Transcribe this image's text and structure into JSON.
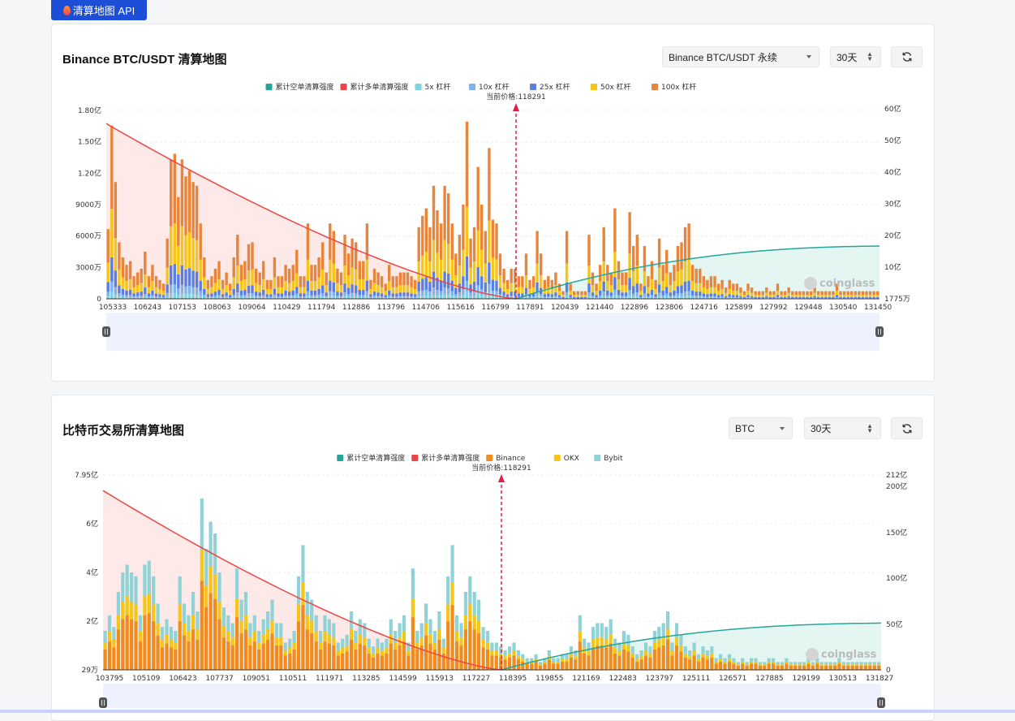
{
  "api_button": {
    "label": "清算地图 API"
  },
  "card1": {
    "title": "Binance BTC/USDT 清算地图",
    "pair_select": "Binance BTC/USDT 永续",
    "period_select": "30天",
    "chart": {
      "legend": [
        "累计空单清算强度",
        "累计多单清算强度",
        "5x 杠杆",
        "10x 杠杆",
        "25x 杠杆",
        "50x 杠杆",
        "100x 杠杆"
      ],
      "price_label": "当前价格:118291",
      "left_ticks": [
        "1.80亿",
        "1.50亿",
        "1.20亿",
        "9000万",
        "6000万",
        "3000万",
        "0"
      ],
      "right_ticks": [
        "60亿",
        "50亿",
        "40亿",
        "30亿",
        "20亿",
        "10亿",
        "1775万"
      ],
      "x_ticks": [
        "105333",
        "106243",
        "107153",
        "108063",
        "109064",
        "110429",
        "111794",
        "112886",
        "113796",
        "114706",
        "115616",
        "116799",
        "117891",
        "120439",
        "121440",
        "122896",
        "123806",
        "124716",
        "125899",
        "127992",
        "129448",
        "130540",
        "131450"
      ],
      "watermark": "coinglass"
    }
  },
  "card2": {
    "title": "比特币交易所清算地图",
    "coin_select": "BTC",
    "period_select": "30天",
    "chart": {
      "legend": [
        "累计空单清算强度",
        "累计多单清算强度",
        "Binance",
        "OKX",
        "Bybit"
      ],
      "price_label": "当前价格:118291",
      "left_ticks": [
        "7.95亿",
        "6亿",
        "4亿",
        "2亿",
        "29万"
      ],
      "right_ticks": [
        "212亿",
        "200亿",
        "150亿",
        "100亿",
        "50亿",
        "0"
      ],
      "x_ticks": [
        "103795",
        "105109",
        "106423",
        "107737",
        "109051",
        "110511",
        "111971",
        "113285",
        "114599",
        "115913",
        "117227",
        "118395",
        "119855",
        "121169",
        "122483",
        "123797",
        "125111",
        "126571",
        "127885",
        "129199",
        "130513",
        "131827"
      ],
      "watermark": "coinglass"
    }
  },
  "chart_data": [
    {
      "type": "bar",
      "title": "Binance BTC/USDT 清算地图",
      "current_price": 118291,
      "y_left_range_note": "0 to 1.80亿",
      "y_right_range_note": "1775万 to 60亿",
      "series": [
        {
          "name": "5x 杠杆",
          "color": "#7dd3e0"
        },
        {
          "name": "10x 杠杆",
          "color": "#7cb5ec"
        },
        {
          "name": "25x 杠杆",
          "color": "#5b7fe0"
        },
        {
          "name": "50x 杠杆",
          "color": "#f5c518"
        },
        {
          "name": "100x 杠杆",
          "color": "#e8853a"
        },
        {
          "name": "累计空单清算强度",
          "color": "#26a69a",
          "kind": "area"
        },
        {
          "name": "累计多单清算强度",
          "color": "#ef4444",
          "kind": "area"
        }
      ],
      "bar_heights_pct": [
        37,
        92,
        62,
        30,
        22,
        18,
        20,
        12,
        14,
        16,
        25,
        12,
        18,
        12,
        10,
        8,
        32,
        74,
        77,
        54,
        74,
        65,
        68,
        62,
        60,
        40,
        22,
        10,
        12,
        16,
        20,
        10,
        14,
        8,
        22,
        34,
        18,
        20,
        29,
        30,
        16,
        14,
        20,
        10,
        10,
        22,
        12,
        12,
        18,
        16,
        18,
        26,
        12,
        12,
        40,
        18,
        18,
        22,
        30,
        14,
        40,
        36,
        16,
        14,
        34,
        24,
        32,
        30,
        20,
        20,
        40,
        10,
        16,
        14,
        12,
        8,
        18,
        12,
        12,
        14,
        14,
        14,
        12,
        10,
        38,
        44,
        48,
        38,
        60,
        47,
        40,
        60,
        56,
        40,
        24,
        34,
        50,
        94,
        32,
        38,
        70,
        50,
        36,
        80,
        42,
        40,
        24,
        16,
        10,
        16,
        16,
        12,
        12,
        24,
        10,
        12,
        36,
        24,
        10,
        12,
        10,
        14,
        8,
        4,
        36,
        8,
        4,
        4,
        4,
        4,
        34,
        14,
        8,
        18,
        38,
        18,
        14,
        48,
        20,
        14,
        14,
        46,
        28,
        34,
        8,
        28,
        12,
        20,
        10,
        32,
        18,
        26,
        14,
        18,
        28,
        30,
        38,
        40,
        18,
        16,
        16,
        12,
        10,
        12,
        12,
        8,
        10,
        6,
        10,
        8,
        8,
        6,
        4,
        8,
        6,
        4,
        4,
        4,
        6,
        4,
        4,
        8,
        4,
        4,
        6,
        4,
        4,
        4,
        4,
        4,
        4,
        6,
        4,
        4,
        4,
        4,
        4,
        8,
        4,
        4,
        4,
        4,
        4,
        4,
        4,
        4,
        4,
        4,
        4
      ]
    },
    {
      "type": "bar",
      "title": "比特币交易所清算地图",
      "current_price": 118291,
      "y_left_range_note": "29万 to 7.95亿",
      "y_right_range_note": "0 to 212亿",
      "series": [
        {
          "name": "Binance",
          "color": "#f08c1e"
        },
        {
          "name": "OKX",
          "color": "#f5c518"
        },
        {
          "name": "Bybit",
          "color": "#8fd3d6"
        },
        {
          "name": "累计空单清算强度",
          "color": "#26a69a",
          "kind": "area"
        },
        {
          "name": "累计多单清算强度",
          "color": "#ef4444",
          "kind": "area"
        }
      ],
      "bar_heights_pct": [
        20,
        28,
        22,
        40,
        50,
        54,
        50,
        48,
        28,
        54,
        56,
        48,
        34,
        22,
        26,
        22,
        20,
        48,
        34,
        28,
        40,
        30,
        88,
        62,
        76,
        70,
        50,
        32,
        28,
        24,
        52,
        36,
        40,
        24,
        28,
        20,
        26,
        30,
        36,
        24,
        24,
        14,
        16,
        20,
        48,
        64,
        40,
        36,
        28,
        20,
        28,
        26,
        24,
        14,
        16,
        18,
        30,
        20,
        26,
        24,
        16,
        12,
        16,
        14,
        16,
        26,
        20,
        24,
        28,
        14,
        52,
        20,
        24,
        34,
        26,
        20,
        30,
        16,
        48,
        64,
        28,
        24,
        40,
        48,
        40,
        36,
        22,
        20,
        14,
        14,
        12,
        10,
        12,
        14,
        10,
        8,
        6,
        6,
        8,
        4,
        6,
        10,
        6,
        6,
        8,
        8,
        12,
        10,
        28,
        16,
        14,
        22,
        24,
        24,
        22,
        26,
        16,
        14,
        20,
        18,
        12,
        8,
        10,
        14,
        12,
        20,
        22,
        24,
        30,
        14,
        24,
        18,
        12,
        10,
        14,
        8,
        12,
        10,
        12,
        6,
        8,
        6,
        8,
        6,
        4,
        6,
        4,
        6,
        6,
        4,
        4,
        6,
        6,
        4,
        4,
        6,
        4,
        4,
        4,
        4,
        6,
        4,
        6,
        4,
        4,
        4,
        4,
        6,
        4,
        4,
        4,
        4,
        4,
        4,
        4,
        4,
        4
      ]
    }
  ]
}
